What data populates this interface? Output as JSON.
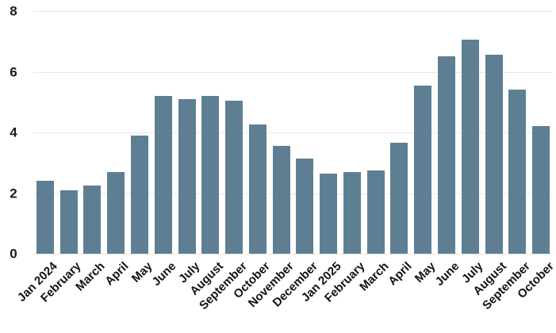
{
  "chart_data": {
    "type": "bar",
    "title": "",
    "xlabel": "",
    "ylabel": "",
    "categories": [
      "Jan 2024",
      "February",
      "March",
      "April",
      "May",
      "June",
      "July",
      "August",
      "September",
      "October",
      "November",
      "December",
      "Jan 2025",
      "February",
      "March",
      "April",
      "May",
      "June",
      "July",
      "August",
      "September",
      "October"
    ],
    "values": [
      2.4,
      2.1,
      2.25,
      2.7,
      3.9,
      5.2,
      5.1,
      5.2,
      5.05,
      4.25,
      3.55,
      3.15,
      2.65,
      2.7,
      2.75,
      3.65,
      5.55,
      6.5,
      7.05,
      6.55,
      5.4,
      4.2
    ],
    "ylim": [
      0,
      8
    ],
    "yticks": [
      0,
      2,
      4,
      6,
      8
    ],
    "bar_color": "#5e7f93",
    "gridline_color": "#e7e7e7",
    "grid": "horizontal",
    "legend": "none",
    "background": "#ffffff"
  }
}
